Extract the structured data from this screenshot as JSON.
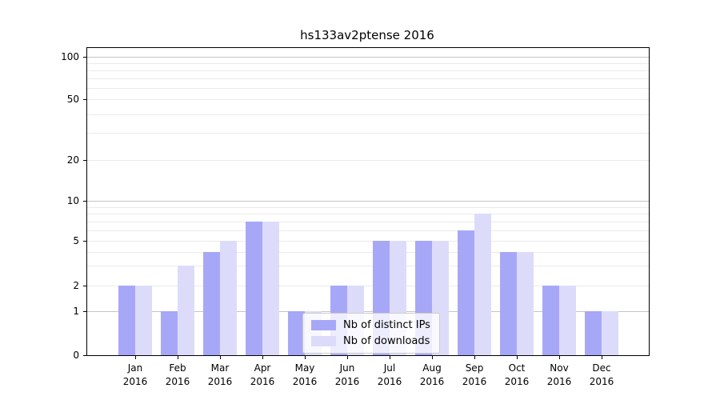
{
  "chart_data": {
    "type": "bar",
    "title": "hs133av2ptense 2016",
    "categories": [
      "Jan",
      "Feb",
      "Mar",
      "Apr",
      "May",
      "Jun",
      "Jul",
      "Aug",
      "Sep",
      "Oct",
      "Nov",
      "Dec"
    ],
    "category_year": "2016",
    "series": [
      {
        "name": "Nb of distinct IPs",
        "color": "#a7a7f8",
        "values": [
          2,
          1,
          4,
          7,
          1,
          2,
          5,
          5,
          6,
          4,
          2,
          1
        ]
      },
      {
        "name": "Nb of downloads",
        "color": "#dcdcfa",
        "values": [
          2,
          3,
          5,
          7,
          1,
          2,
          5,
          5,
          8,
          4,
          2,
          1
        ]
      }
    ],
    "xlabel": "",
    "ylabel": "",
    "yscale": "symlog",
    "ylim": [
      0,
      115
    ],
    "yticks": [
      0,
      1,
      2,
      5,
      10,
      20,
      50,
      100
    ],
    "yticks_strong_grid": [
      1,
      10,
      100
    ],
    "yticks_minor": [
      3,
      4,
      6,
      7,
      8,
      9,
      30,
      40,
      60,
      70,
      80,
      90
    ],
    "grid": true,
    "legend_position": "lower-center-inside"
  },
  "colors": {
    "bar_dark": "#a7a7f8",
    "bar_light": "#dcdcfa",
    "grid_major": "#c4c4c4",
    "grid_minor": "#ebebeb",
    "spine": "#000000",
    "background": "#ffffff"
  }
}
